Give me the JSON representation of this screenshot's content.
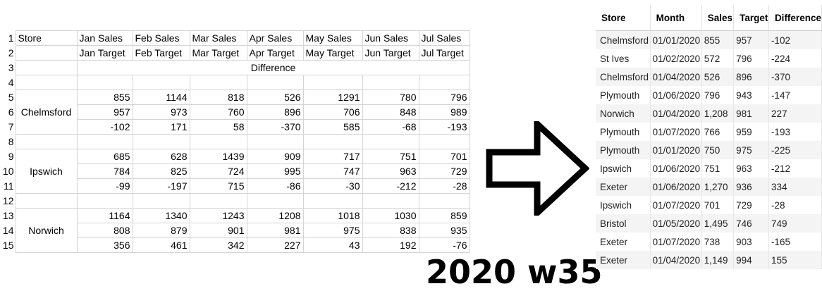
{
  "sheet": {
    "row_numbers": [
      "1",
      "2",
      "3",
      "4",
      "5",
      "6",
      "7",
      "8",
      "9",
      "10",
      "11",
      "12",
      "13",
      "14",
      "15"
    ],
    "header_row1": [
      "Store",
      "Jan Sales",
      "Feb Sales",
      "Mar Sales",
      "Apr Sales",
      "May Sales",
      "Jun Sales",
      "Jul Sales"
    ],
    "header_row2": [
      "Jan Target",
      "Feb Target",
      "Mar Target",
      "Apr Target",
      "May Target",
      "Jun Target",
      "Jul Target"
    ],
    "difference_label": "Difference",
    "stores": [
      {
        "name": "Chelmsford",
        "sales": [
          "855",
          "1144",
          "818",
          "526",
          "1291",
          "780",
          "796"
        ],
        "target": [
          "957",
          "973",
          "760",
          "896",
          "706",
          "848",
          "989"
        ],
        "diff": [
          "-102",
          "171",
          "58",
          "-370",
          "585",
          "-68",
          "-193"
        ]
      },
      {
        "name": "Ipswich",
        "sales": [
          "685",
          "628",
          "1439",
          "909",
          "717",
          "751",
          "701"
        ],
        "target": [
          "784",
          "825",
          "724",
          "995",
          "747",
          "963",
          "729"
        ],
        "diff": [
          "-99",
          "-197",
          "715",
          "-86",
          "-30",
          "-212",
          "-28"
        ]
      },
      {
        "name": "Norwich",
        "sales": [
          "1164",
          "1340",
          "1243",
          "1208",
          "1018",
          "1030",
          "859"
        ],
        "target": [
          "808",
          "879",
          "901",
          "981",
          "975",
          "838",
          "935"
        ],
        "diff": [
          "356",
          "461",
          "342",
          "227",
          "43",
          "192",
          "-76"
        ]
      }
    ]
  },
  "arrow": {
    "icon": "right-arrow-icon"
  },
  "caption": "2020 w35",
  "output": {
    "columns": [
      "Store",
      "Month",
      "Sales",
      "Target",
      "Difference"
    ],
    "rows": [
      [
        "Chelmsford",
        "01/01/2020",
        "855",
        "957",
        "-102"
      ],
      [
        "St Ives",
        "01/02/2020",
        "572",
        "796",
        "-224"
      ],
      [
        "Chelmsford",
        "01/04/2020",
        "526",
        "896",
        "-370"
      ],
      [
        "Plymouth",
        "01/06/2020",
        "796",
        "943",
        "-147"
      ],
      [
        "Norwich",
        "01/04/2020",
        "1,208",
        "981",
        "227"
      ],
      [
        "Plymouth",
        "01/07/2020",
        "766",
        "959",
        "-193"
      ],
      [
        "Plymouth",
        "01/01/2020",
        "750",
        "975",
        "-225"
      ],
      [
        "Ipswich",
        "01/06/2020",
        "751",
        "963",
        "-212"
      ],
      [
        "Exeter",
        "01/06/2020",
        "1,270",
        "936",
        "334"
      ],
      [
        "Ipswich",
        "01/07/2020",
        "701",
        "729",
        "-28"
      ],
      [
        "Bristol",
        "01/05/2020",
        "1,495",
        "746",
        "749"
      ],
      [
        "Exeter",
        "01/07/2020",
        "738",
        "903",
        "-165"
      ],
      [
        "Exeter",
        "01/04/2020",
        "1,149",
        "994",
        "155"
      ]
    ]
  }
}
